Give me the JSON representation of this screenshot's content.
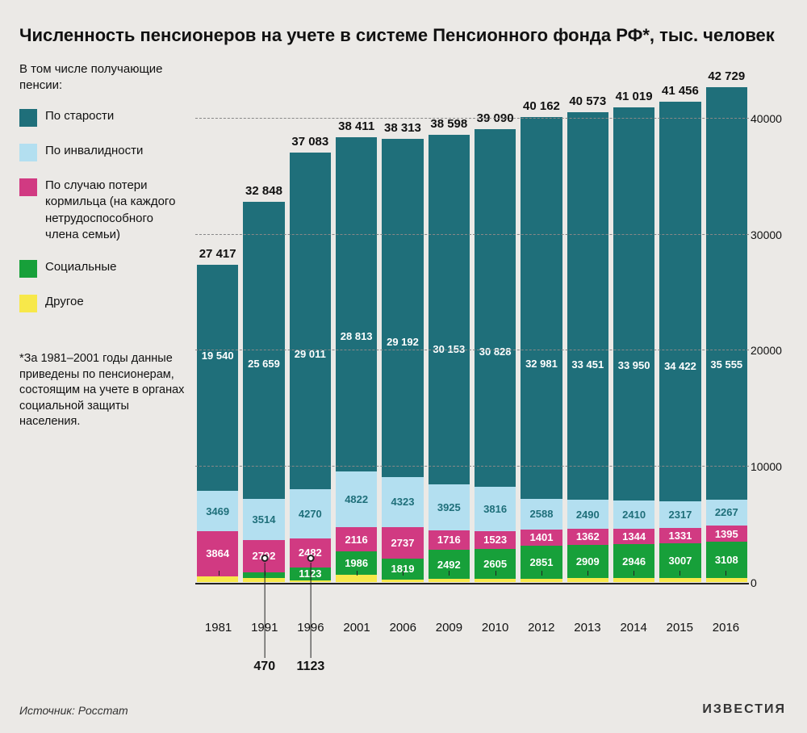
{
  "title": "Численность пенсионеров на учете в системе Пенсионного фонда РФ*, тыс. человек",
  "subtitle": "В том числе получающие пенсии:",
  "legend": [
    {
      "label": "По старости",
      "color": "#1f6f7a",
      "key": "old_age"
    },
    {
      "label": "По инвалидности",
      "color": "#b3dff0",
      "key": "disability"
    },
    {
      "label": "По случаю потери кормильца (на каждого нетрудоспособного члена семьи)",
      "color": "#d13a82",
      "key": "breadwinner"
    },
    {
      "label": "Социальные",
      "color": "#17a03a",
      "key": "social"
    },
    {
      "label": "Другое",
      "color": "#f7e84a",
      "key": "other"
    }
  ],
  "footnote": "*За 1981–2001 годы данные приведены по пенсионерам, состоящим на учете в органах социальной защиты населения.",
  "source": "Источник: Росстат",
  "publisher": "ИЗВЕСТИЯ",
  "chart": {
    "type": "stacked-bar",
    "background": "#ebe9e6",
    "grid_color": "#888",
    "ymin": 0,
    "ymax": 45000,
    "yticks": [
      0,
      10000,
      20000,
      30000,
      40000
    ],
    "segment_order": [
      "other",
      "social",
      "breadwinner",
      "disability",
      "old_age"
    ],
    "segment_colors": {
      "old_age": "#1f6f7a",
      "disability": "#b3dff0",
      "breadwinner": "#d13a82",
      "social": "#17a03a",
      "other": "#f7e84a"
    },
    "segment_text_colors": {
      "old_age": "#ffffff",
      "disability": "#1f6f7a",
      "breadwinner": "#ffffff",
      "social": "#ffffff",
      "other": "#333333"
    },
    "show_segment_labels": [
      "old_age",
      "disability",
      "breadwinner",
      "social"
    ],
    "categories": [
      "1981",
      "1991",
      "1996",
      "2001",
      "2006",
      "2009",
      "2010",
      "2012",
      "2013",
      "2014",
      "2015",
      "2016"
    ],
    "totals": [
      27417,
      32848,
      37083,
      38411,
      38313,
      38598,
      39090,
      40162,
      40573,
      41019,
      41456,
      42729
    ],
    "series": {
      "old_age": [
        19540,
        25659,
        29011,
        28813,
        29192,
        30153,
        30828,
        32981,
        33451,
        33950,
        34422,
        35555
      ],
      "disability": [
        3469,
        3514,
        4270,
        4822,
        4323,
        3925,
        3816,
        2588,
        2490,
        2410,
        2317,
        2267
      ],
      "breadwinner": [
        3864,
        2792,
        2482,
        2116,
        2737,
        1716,
        1523,
        1401,
        1362,
        1344,
        1331,
        1395
      ],
      "social": [
        0,
        470,
        1123,
        1986,
        1819,
        2492,
        2605,
        2851,
        2909,
        2946,
        3007,
        3108
      ],
      "other": [
        544,
        413,
        197,
        674,
        242,
        312,
        318,
        341,
        361,
        369,
        379,
        404
      ]
    },
    "callouts": [
      {
        "category": "1991",
        "value": 470
      },
      {
        "category": "1996",
        "value": 1123
      }
    ]
  }
}
